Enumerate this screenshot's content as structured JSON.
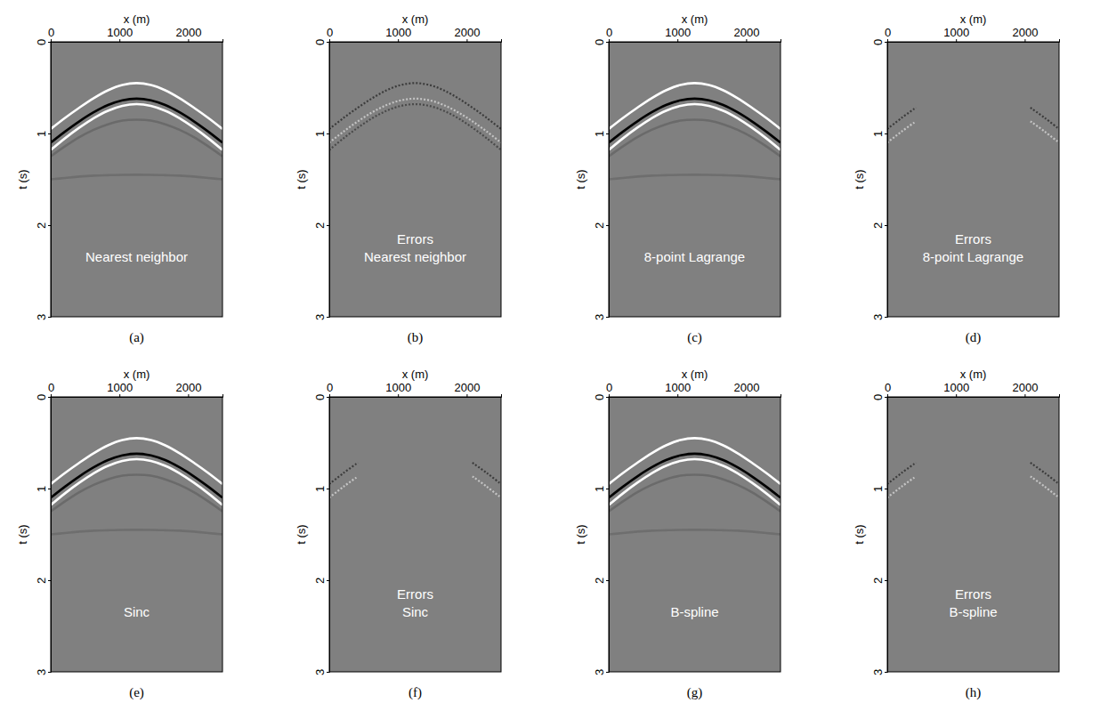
{
  "chart_data": [
    {
      "type": "line",
      "title": "(a)",
      "annotation": [
        "Nearest neighbor"
      ],
      "xlabel": "x (m)",
      "ylabel": "t (s)",
      "color": "#808080",
      "xlim": [
        0,
        2500
      ],
      "ylim": [
        0,
        3
      ],
      "xticks": [
        0,
        1000,
        2000
      ],
      "yticks": [
        0,
        1,
        2,
        3
      ],
      "x": [
        0,
        208,
        417,
        625,
        833,
        1042,
        1250,
        1458,
        1667,
        1875,
        2083,
        2292,
        2500
      ],
      "series": [
        {
          "color": "#ffffff",
          "line_style": "solid",
          "values": [
            0.951,
            0.83,
            0.718,
            0.615,
            0.529,
            0.471,
            0.45,
            0.471,
            0.529,
            0.615,
            0.718,
            0.83,
            0.951
          ]
        },
        {
          "color": "#000000",
          "line_style": "solid",
          "values": [
            1.1,
            0.979,
            0.867,
            0.769,
            0.69,
            0.638,
            0.62,
            0.638,
            0.69,
            0.769,
            0.867,
            0.979,
            1.1
          ]
        },
        {
          "color": "#ffffff",
          "line_style": "solid",
          "values": [
            1.18,
            1.052,
            0.936,
            0.833,
            0.752,
            0.699,
            0.68,
            0.699,
            0.752,
            0.833,
            0.936,
            1.052,
            1.18
          ]
        },
        {
          "color": "#6a6a6a",
          "line_style": "solid",
          "values": [
            1.25,
            1.14,
            1.04,
            0.96,
            0.9,
            0.86,
            0.85,
            0.86,
            0.9,
            0.96,
            1.04,
            1.14,
            1.25
          ]
        },
        {
          "color": "#6e6e6e",
          "line_style": "solid",
          "values": [
            1.5,
            1.485,
            1.47,
            1.46,
            1.455,
            1.451,
            1.45,
            1.451,
            1.455,
            1.46,
            1.47,
            1.485,
            1.5
          ]
        }
      ]
    },
    {
      "type": "line",
      "title": "(b)",
      "annotation": [
        "Errors",
        "Nearest neighbor"
      ],
      "xlabel": "x (m)",
      "ylabel": "t (s)",
      "color": "#808080",
      "xlim": [
        0,
        2500
      ],
      "ylim": [
        0,
        3
      ],
      "xticks": [
        0,
        1000,
        2000
      ],
      "yticks": [
        0,
        1,
        2,
        3
      ],
      "x": [
        0,
        208,
        417,
        625,
        833,
        1042,
        1250,
        1458,
        1667,
        1875,
        2083,
        2292,
        2500
      ],
      "series": [
        {
          "color": "#3c3c3c",
          "line_style": "dashed",
          "values": [
            0.951,
            0.83,
            0.718,
            0.615,
            0.529,
            0.471,
            0.45,
            0.471,
            0.529,
            0.615,
            0.718,
            0.83,
            0.951
          ]
        },
        {
          "color": "#c4c4c4",
          "line_style": "dashed",
          "values": [
            1.1,
            0.979,
            0.867,
            0.769,
            0.69,
            0.638,
            0.62,
            0.638,
            0.69,
            0.769,
            0.867,
            0.979,
            1.1
          ]
        },
        {
          "color": "#4a4a4a",
          "line_style": "dashed",
          "values": [
            1.18,
            1.052,
            0.936,
            0.833,
            0.752,
            0.699,
            0.68,
            0.699,
            0.752,
            0.833,
            0.936,
            1.052,
            1.18
          ]
        }
      ]
    },
    {
      "type": "line",
      "title": "(c)",
      "annotation": [
        "8-point Lagrange"
      ],
      "xlabel": "x (m)",
      "ylabel": "t (s)",
      "color": "#808080",
      "xlim": [
        0,
        2500
      ],
      "ylim": [
        0,
        3
      ],
      "xticks": [
        0,
        1000,
        2000
      ],
      "yticks": [
        0,
        1,
        2,
        3
      ],
      "x": [
        0,
        208,
        417,
        625,
        833,
        1042,
        1250,
        1458,
        1667,
        1875,
        2083,
        2292,
        2500
      ],
      "series": [
        {
          "color": "#ffffff",
          "line_style": "solid",
          "values": [
            0.951,
            0.83,
            0.718,
            0.615,
            0.529,
            0.471,
            0.45,
            0.471,
            0.529,
            0.615,
            0.718,
            0.83,
            0.951
          ]
        },
        {
          "color": "#000000",
          "line_style": "solid",
          "values": [
            1.1,
            0.979,
            0.867,
            0.769,
            0.69,
            0.638,
            0.62,
            0.638,
            0.69,
            0.769,
            0.867,
            0.979,
            1.1
          ]
        },
        {
          "color": "#ffffff",
          "line_style": "solid",
          "values": [
            1.18,
            1.052,
            0.936,
            0.833,
            0.752,
            0.699,
            0.68,
            0.699,
            0.752,
            0.833,
            0.936,
            1.052,
            1.18
          ]
        },
        {
          "color": "#6a6a6a",
          "line_style": "solid",
          "values": [
            1.25,
            1.14,
            1.04,
            0.96,
            0.9,
            0.86,
            0.85,
            0.86,
            0.9,
            0.96,
            1.04,
            1.14,
            1.25
          ]
        },
        {
          "color": "#6e6e6e",
          "line_style": "solid",
          "values": [
            1.5,
            1.485,
            1.47,
            1.46,
            1.455,
            1.451,
            1.45,
            1.451,
            1.455,
            1.46,
            1.47,
            1.485,
            1.5
          ]
        }
      ]
    },
    {
      "type": "line",
      "title": "(d)",
      "annotation": [
        "Errors",
        "8-point Lagrange"
      ],
      "xlabel": "x (m)",
      "ylabel": "t (s)",
      "color": "#808080",
      "xlim": [
        0,
        2500
      ],
      "ylim": [
        0,
        3
      ],
      "xticks": [
        0,
        1000,
        2000
      ],
      "yticks": [
        0,
        1,
        2,
        3
      ],
      "x": [
        0,
        208,
        417,
        625,
        833,
        1042,
        1250,
        1458,
        1667,
        1875,
        2083,
        2292,
        2500
      ],
      "series": [
        {
          "color": "#3c3c3c",
          "line_style": "dashed",
          "values": [
            0.951,
            0.83,
            0.718,
            null,
            null,
            null,
            null,
            null,
            null,
            null,
            0.718,
            0.83,
            0.951
          ]
        },
        {
          "color": "#c4c4c4",
          "line_style": "dashed",
          "values": [
            1.1,
            0.979,
            0.867,
            null,
            null,
            null,
            null,
            null,
            null,
            null,
            0.867,
            0.979,
            1.1
          ]
        }
      ]
    },
    {
      "type": "line",
      "title": "(e)",
      "annotation": [
        "Sinc"
      ],
      "xlabel": "x (m)",
      "ylabel": "t (s)",
      "color": "#808080",
      "xlim": [
        0,
        2500
      ],
      "ylim": [
        0,
        3
      ],
      "xticks": [
        0,
        1000,
        2000
      ],
      "yticks": [
        0,
        1,
        2,
        3
      ],
      "x": [
        0,
        208,
        417,
        625,
        833,
        1042,
        1250,
        1458,
        1667,
        1875,
        2083,
        2292,
        2500
      ],
      "series": [
        {
          "color": "#ffffff",
          "line_style": "solid",
          "values": [
            0.951,
            0.83,
            0.718,
            0.615,
            0.529,
            0.471,
            0.45,
            0.471,
            0.529,
            0.615,
            0.718,
            0.83,
            0.951
          ]
        },
        {
          "color": "#000000",
          "line_style": "solid",
          "values": [
            1.1,
            0.979,
            0.867,
            0.769,
            0.69,
            0.638,
            0.62,
            0.638,
            0.69,
            0.769,
            0.867,
            0.979,
            1.1
          ]
        },
        {
          "color": "#ffffff",
          "line_style": "solid",
          "values": [
            1.18,
            1.052,
            0.936,
            0.833,
            0.752,
            0.699,
            0.68,
            0.699,
            0.752,
            0.833,
            0.936,
            1.052,
            1.18
          ]
        },
        {
          "color": "#6a6a6a",
          "line_style": "solid",
          "values": [
            1.25,
            1.14,
            1.04,
            0.96,
            0.9,
            0.86,
            0.85,
            0.86,
            0.9,
            0.96,
            1.04,
            1.14,
            1.25
          ]
        },
        {
          "color": "#6e6e6e",
          "line_style": "solid",
          "values": [
            1.5,
            1.485,
            1.47,
            1.46,
            1.455,
            1.451,
            1.45,
            1.451,
            1.455,
            1.46,
            1.47,
            1.485,
            1.5
          ]
        }
      ]
    },
    {
      "type": "line",
      "title": "(f)",
      "annotation": [
        "Errors",
        "Sinc"
      ],
      "xlabel": "x (m)",
      "ylabel": "t (s)",
      "color": "#808080",
      "xlim": [
        0,
        2500
      ],
      "ylim": [
        0,
        3
      ],
      "xticks": [
        0,
        1000,
        2000
      ],
      "yticks": [
        0,
        1,
        2,
        3
      ],
      "x": [
        0,
        208,
        417,
        625,
        833,
        1042,
        1250,
        1458,
        1667,
        1875,
        2083,
        2292,
        2500
      ],
      "series": [
        {
          "color": "#3c3c3c",
          "line_style": "dashed",
          "values": [
            0.951,
            0.83,
            0.718,
            null,
            null,
            null,
            null,
            null,
            null,
            null,
            0.718,
            0.83,
            0.951
          ]
        },
        {
          "color": "#c4c4c4",
          "line_style": "dashed",
          "values": [
            1.1,
            0.979,
            0.867,
            null,
            null,
            null,
            null,
            null,
            null,
            null,
            0.867,
            0.979,
            1.1
          ]
        }
      ]
    },
    {
      "type": "line",
      "title": "(g)",
      "annotation": [
        "B-spline"
      ],
      "xlabel": "x (m)",
      "ylabel": "t (s)",
      "color": "#808080",
      "xlim": [
        0,
        2500
      ],
      "ylim": [
        0,
        3
      ],
      "xticks": [
        0,
        1000,
        2000
      ],
      "yticks": [
        0,
        1,
        2,
        3
      ],
      "x": [
        0,
        208,
        417,
        625,
        833,
        1042,
        1250,
        1458,
        1667,
        1875,
        2083,
        2292,
        2500
      ],
      "series": [
        {
          "color": "#ffffff",
          "line_style": "solid",
          "values": [
            0.951,
            0.83,
            0.718,
            0.615,
            0.529,
            0.471,
            0.45,
            0.471,
            0.529,
            0.615,
            0.718,
            0.83,
            0.951
          ]
        },
        {
          "color": "#000000",
          "line_style": "solid",
          "values": [
            1.1,
            0.979,
            0.867,
            0.769,
            0.69,
            0.638,
            0.62,
            0.638,
            0.69,
            0.769,
            0.867,
            0.979,
            1.1
          ]
        },
        {
          "color": "#ffffff",
          "line_style": "solid",
          "values": [
            1.18,
            1.052,
            0.936,
            0.833,
            0.752,
            0.699,
            0.68,
            0.699,
            0.752,
            0.833,
            0.936,
            1.052,
            1.18
          ]
        },
        {
          "color": "#6a6a6a",
          "line_style": "solid",
          "values": [
            1.25,
            1.14,
            1.04,
            0.96,
            0.9,
            0.86,
            0.85,
            0.86,
            0.9,
            0.96,
            1.04,
            1.14,
            1.25
          ]
        },
        {
          "color": "#6e6e6e",
          "line_style": "solid",
          "values": [
            1.5,
            1.485,
            1.47,
            1.46,
            1.455,
            1.451,
            1.45,
            1.451,
            1.455,
            1.46,
            1.47,
            1.485,
            1.5
          ]
        }
      ]
    },
    {
      "type": "line",
      "title": "(h)",
      "annotation": [
        "Errors",
        "B-spline"
      ],
      "xlabel": "x (m)",
      "ylabel": "t (s)",
      "color": "#808080",
      "xlim": [
        0,
        2500
      ],
      "ylim": [
        0,
        3
      ],
      "xticks": [
        0,
        1000,
        2000
      ],
      "yticks": [
        0,
        1,
        2,
        3
      ],
      "x": [
        0,
        208,
        417,
        625,
        833,
        1042,
        1250,
        1458,
        1667,
        1875,
        2083,
        2292,
        2500
      ],
      "series": [
        {
          "color": "#3c3c3c",
          "line_style": "dashed",
          "values": [
            0.951,
            0.83,
            0.718,
            null,
            null,
            null,
            null,
            null,
            null,
            null,
            0.718,
            0.83,
            0.951
          ]
        },
        {
          "color": "#c4c4c4",
          "line_style": "dashed",
          "values": [
            1.1,
            0.979,
            0.867,
            null,
            null,
            null,
            null,
            null,
            null,
            null,
            0.867,
            0.979,
            1.1
          ]
        }
      ]
    }
  ]
}
